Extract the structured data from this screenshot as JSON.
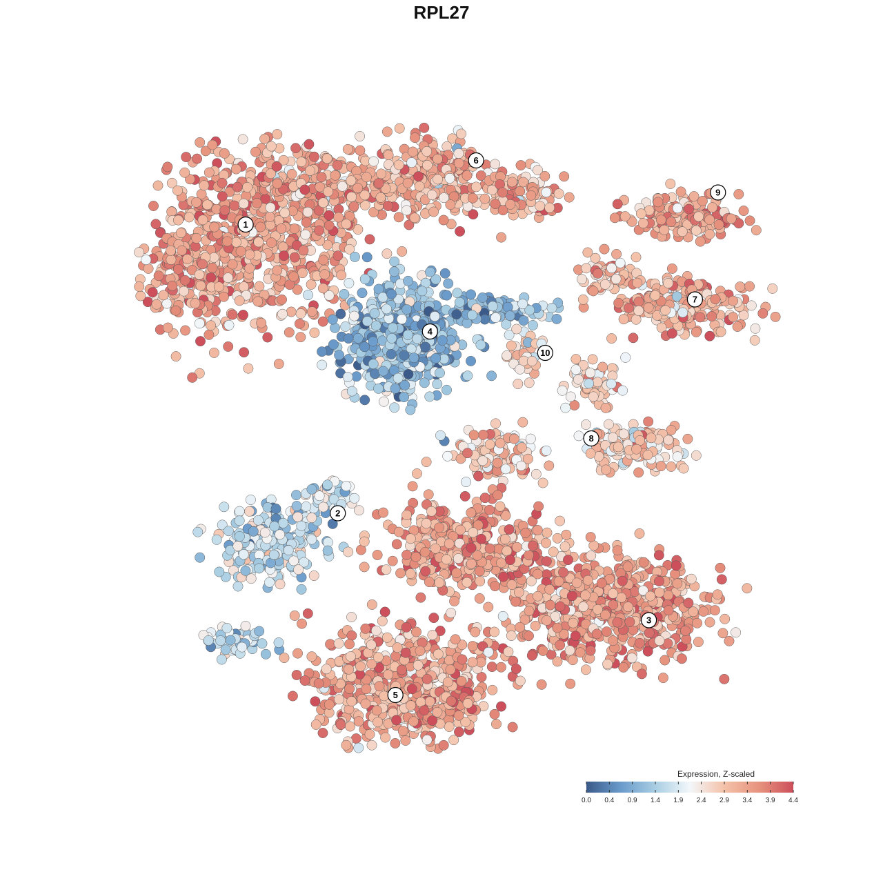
{
  "chart_data": {
    "type": "scatter",
    "title": "RPL27",
    "xlabel": "",
    "ylabel": "",
    "grid": false,
    "legend_placement": "bottom-right",
    "colorbar": {
      "title": "Expression, Z-scaled",
      "min": 0.0,
      "max": 4.4,
      "ticks": [
        "0.0",
        "0.4",
        "0.9",
        "1.4",
        "1.9",
        "2.4",
        "2.9",
        "3.4",
        "3.9",
        "4.4"
      ],
      "colors": [
        "#3b5a89",
        "#6a9bcb",
        "#a9cee3",
        "#f3f7fa",
        "#f4c1a9",
        "#e7937e",
        "#cc4f5b"
      ]
    },
    "clusters": [
      {
        "label": "1",
        "x": -17.0,
        "y": 19.0,
        "mean_expression": 3.4
      },
      {
        "label": "6",
        "x": 3.0,
        "y": 25.0,
        "mean_expression": 3.2
      },
      {
        "label": "9",
        "x": 24.0,
        "y": 22.0,
        "mean_expression": 3.4
      },
      {
        "label": "7",
        "x": 22.0,
        "y": 12.0,
        "mean_expression": 3.2
      },
      {
        "label": "4",
        "x": -1.0,
        "y": 9.0,
        "mean_expression": 1.2
      },
      {
        "label": "10",
        "x": 9.0,
        "y": 7.0,
        "mean_expression": 2.6
      },
      {
        "label": "8",
        "x": 13.0,
        "y": -1.0,
        "mean_expression": 2.8
      },
      {
        "label": "2",
        "x": -9.0,
        "y": -8.0,
        "mean_expression": 1.8
      },
      {
        "label": "3",
        "x": 18.0,
        "y": -18.0,
        "mean_expression": 3.5
      },
      {
        "label": "5",
        "x": -4.0,
        "y": -25.0,
        "mean_expression": 3.4
      }
    ]
  }
}
